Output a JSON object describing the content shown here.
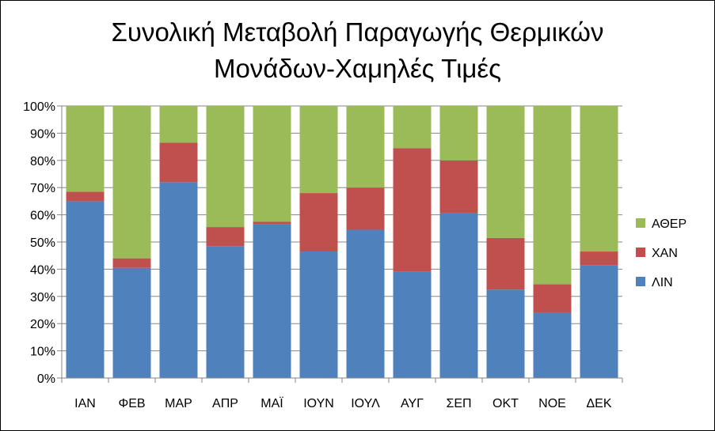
{
  "chart_data": {
    "type": "bar",
    "stacked": true,
    "percent_stacked": true,
    "title_lines": [
      "Συνολική Μεταβολή Παραγωγής Θερμικών",
      "Μονάδων-Χαμηλές Τιμές"
    ],
    "categories": [
      "ΙΑΝ",
      "ΦΕΒ",
      "ΜΑΡ",
      "ΑΠΡ",
      "ΜΑΪ",
      "ΙΟΥΝ",
      "ΙΟΥΛ",
      "ΑΥΓ",
      "ΣΕΠ",
      "ΟΚΤ",
      "ΝΟΕ",
      "ΔΕΚ"
    ],
    "series": [
      {
        "name": "ΛΙΝ",
        "color": "#4f81bd",
        "values": [
          65,
          40.5,
          72,
          48.5,
          56.5,
          46.5,
          54.5,
          39,
          60.5,
          32.5,
          24,
          41.5
        ]
      },
      {
        "name": "ΧΑΝ",
        "color": "#c0504d",
        "values": [
          3.5,
          3.5,
          14.5,
          7,
          1,
          21.5,
          15.5,
          45.5,
          19.5,
          19,
          10.5,
          5
        ]
      },
      {
        "name": "ΑΘΕΡ",
        "color": "#9bbb59",
        "values": [
          31.5,
          56,
          13.5,
          44.5,
          42.5,
          32,
          30,
          15.5,
          20,
          48.5,
          65.5,
          53.5
        ]
      }
    ],
    "ylim": [
      0,
      100
    ],
    "yticks": [
      "0%",
      "10%",
      "20%",
      "30%",
      "40%",
      "50%",
      "60%",
      "70%",
      "80%",
      "90%",
      "100%"
    ],
    "grid": true,
    "legend_position": "right",
    "legend_order": [
      "ΑΘΕΡ",
      "ΧΑΝ",
      "ΛΙΝ"
    ],
    "gridline_color": "#868686",
    "axis_color": "#868686"
  }
}
